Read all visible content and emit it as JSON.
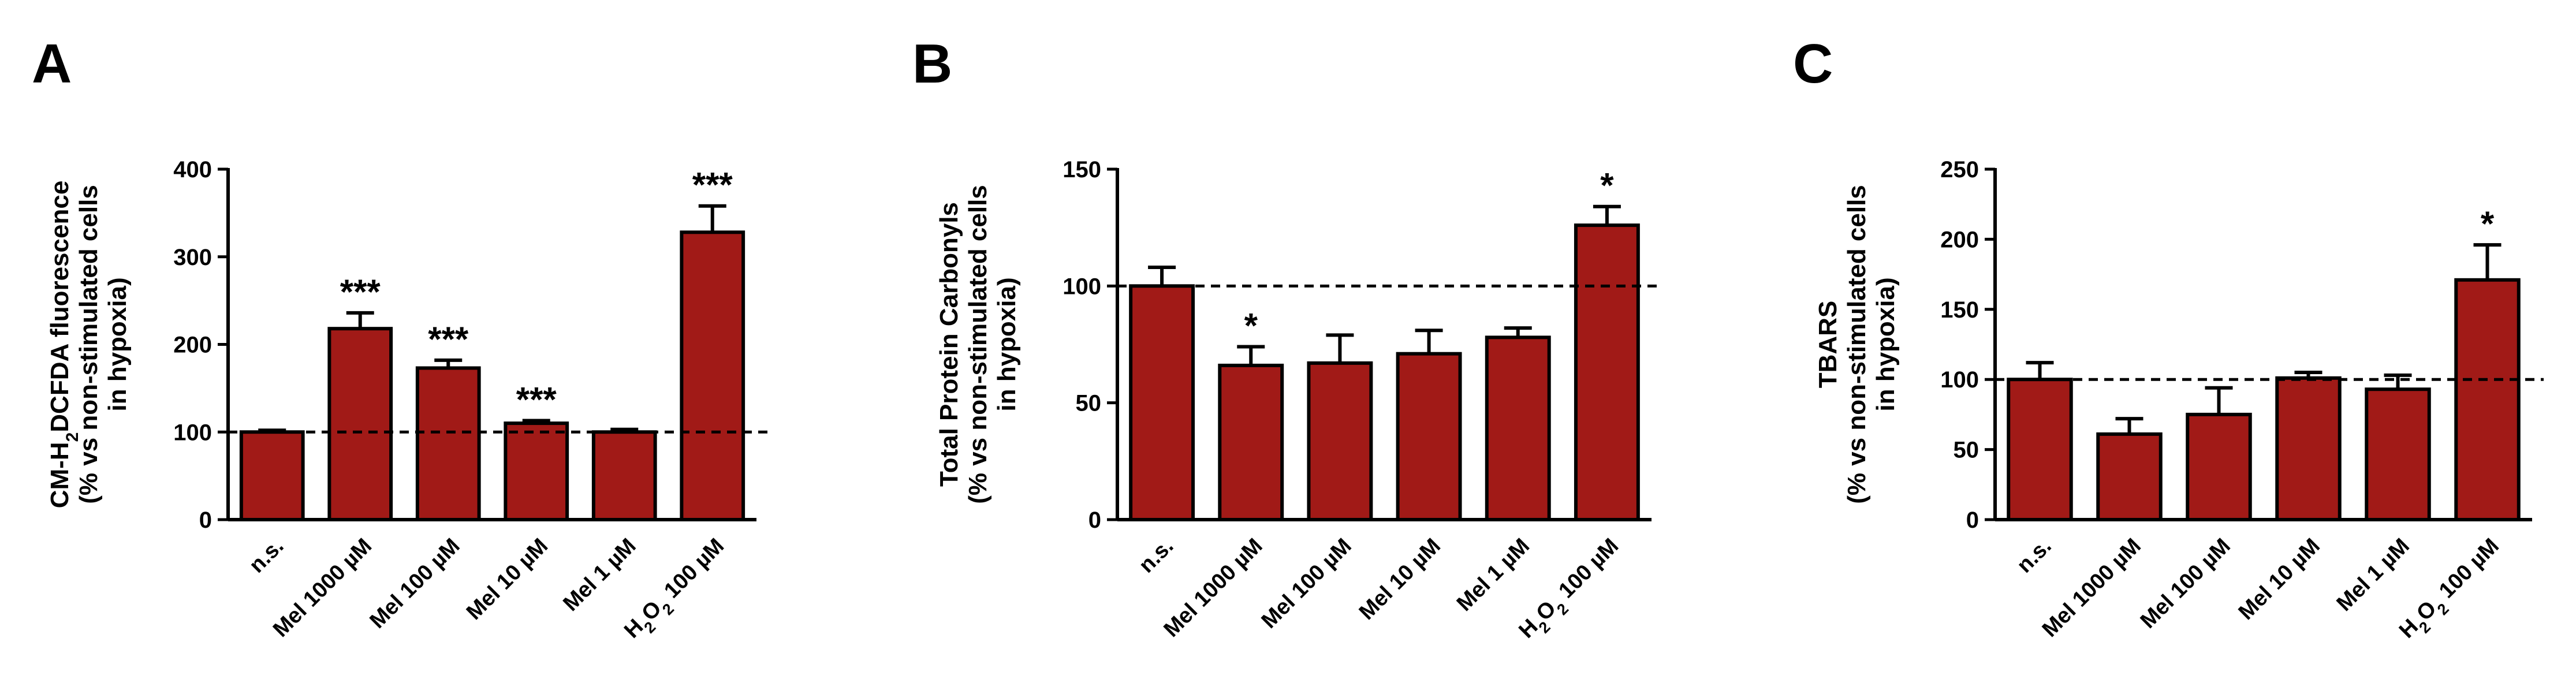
{
  "colors": {
    "bar_fill": "#A11A17",
    "bar_stroke": "#000000",
    "reference_line": "#000000"
  },
  "chart_data": [
    {
      "panel": "A",
      "type": "bar",
      "ylabel_lines": [
        "CM-H2DCFDA fluorescence",
        "(% vs non-stimulated cells",
        "in hypoxia)"
      ],
      "categories": [
        "n.s.",
        "Mel 1000 µM",
        "Mel 100 µM",
        "Mel 10 µM",
        "Mel 1 µM",
        "H2O2 100 µM"
      ],
      "values": [
        100,
        218,
        173,
        110,
        100,
        328
      ],
      "errors": [
        2,
        18,
        9,
        3,
        3,
        30
      ],
      "significance": [
        "",
        "***",
        "***",
        "***",
        "",
        "***"
      ],
      "yticks": [
        0,
        100,
        200,
        300,
        400
      ],
      "ylim": [
        0,
        400
      ],
      "reference_line": 100
    },
    {
      "panel": "B",
      "type": "bar",
      "ylabel_lines": [
        "Total Protein Carbonyls",
        "(% vs non-stimulated cells",
        "in hypoxia)"
      ],
      "categories": [
        "n.s.",
        "Mel 1000 µM",
        "Mel 100 µM",
        "Mel 10 µM",
        "Mel 1 µM",
        "H2O2 100 µM"
      ],
      "values": [
        100,
        66,
        67,
        71,
        78,
        126
      ],
      "errors": [
        8,
        8,
        12,
        10,
        4,
        8
      ],
      "significance": [
        "",
        "*",
        "",
        "",
        "",
        "*"
      ],
      "yticks": [
        0,
        50,
        100,
        150
      ],
      "ylim": [
        0,
        150
      ],
      "reference_line": 100
    },
    {
      "panel": "C",
      "type": "bar",
      "ylabel_lines": [
        "TBARS",
        "(% vs non-stimulated cells",
        "in hypoxia)"
      ],
      "categories": [
        "n.s.",
        "Mel 1000 µM",
        "Mel 100 µM",
        "Mel 10 µM",
        "Mel 1 µM",
        "H2O2 100 µM"
      ],
      "values": [
        100,
        61,
        75,
        101,
        93,
        171
      ],
      "errors": [
        12,
        11,
        19,
        4,
        10,
        25
      ],
      "significance": [
        "",
        "",
        "",
        "",
        "",
        "*"
      ],
      "yticks": [
        0,
        50,
        100,
        150,
        200,
        250
      ],
      "ylim": [
        0,
        250
      ],
      "reference_line": 100
    }
  ]
}
